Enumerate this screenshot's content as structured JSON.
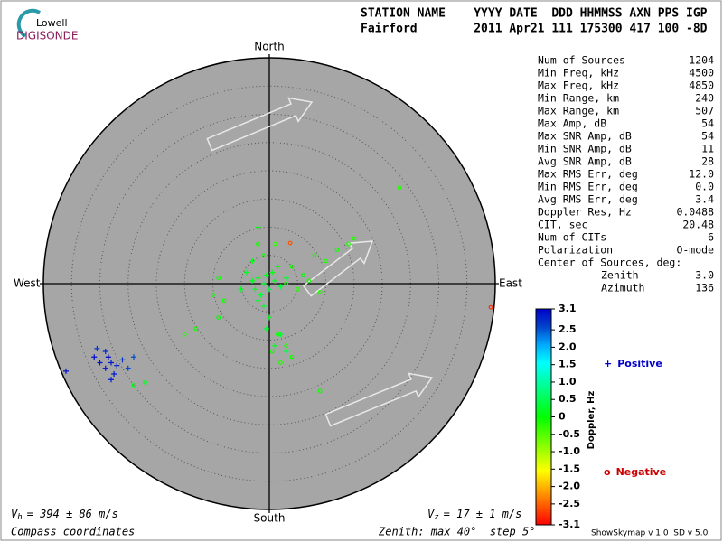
{
  "logo": {
    "top": "Lowell",
    "bottom": "DIGISONDE"
  },
  "header": {
    "line1": "STATION NAME    YYYY DATE  DDD HHMMSS AXN PPS IGP",
    "line2": "Fairford        2011 Apr21 111 175300 417 100 -8D"
  },
  "stats": {
    "rows": [
      [
        "Num of Sources",
        "1204"
      ],
      [
        "Min Freq, kHz",
        "4500"
      ],
      [
        "Max Freq, kHz",
        "4850"
      ],
      [
        "Min Range, km",
        "240"
      ],
      [
        "Max Range, km",
        "507"
      ],
      [
        "Max Amp, dB",
        "54"
      ],
      [
        "Max SNR Amp, dB",
        "54"
      ],
      [
        "Min SNR Amp, dB",
        "11"
      ],
      [
        "Avg SNR Amp, dB",
        "28"
      ],
      [
        "Max RMS Err, deg",
        "12.0"
      ],
      [
        "Min RMS Err, deg",
        "0.0"
      ],
      [
        "Avg RMS Err, deg",
        "3.4"
      ],
      [
        "Doppler Res, Hz",
        "0.0488"
      ],
      [
        "CIT, sec",
        "20.48"
      ],
      [
        "Num of CITs",
        "6"
      ],
      [
        "Polarization",
        "O-mode"
      ]
    ],
    "center_title": "Center of Sources, deg:",
    "zenith": [
      "Zenith",
      "3.0"
    ],
    "azimuth": [
      "Azimuth",
      "136"
    ]
  },
  "footer": {
    "vh": {
      "symbol": "V",
      "sub": "h",
      "text": "= 394 ± 86 m/s"
    },
    "vz": {
      "symbol": "V",
      "sub": "z",
      "text": "= 17 ± 1 m/s"
    },
    "coords": "Compass coordinates",
    "zenith": "Zenith: max 40°  step 5°",
    "version": "ShowSkymap v 1.0  SD v 5.0"
  },
  "chart_data": {
    "type": "scatter",
    "directions": {
      "north": "North",
      "south": "South",
      "east": "East",
      "west": "West"
    },
    "xlim": [
      -40,
      40
    ],
    "ylim": [
      -40,
      40
    ],
    "colorbar": {
      "label": "Doppler, Hz",
      "clim": [
        -3.1,
        3.1
      ],
      "ticks": [
        3.1,
        2.5,
        {
          "value": 2.0,
          "label": "2.0"
        },
        1.5,
        {
          "value": 1.0,
          "label": "1.0"
        },
        0.5,
        0,
        -0.5,
        {
          "value": -1.0,
          "label": "-1.0"
        },
        -1.5,
        {
          "value": -2.0,
          "label": "-2.0"
        },
        -2.5,
        -3.1
      ]
    },
    "series": [
      {
        "name": "Positive",
        "color": "#0000cc",
        "marker": "+",
        "x": [
          -1,
          -2,
          0,
          -3,
          1,
          -1.5,
          0.5,
          -2.5,
          2,
          -0.5,
          -4,
          1.5,
          -1,
          0,
          -3,
          -5,
          3,
          -2,
          2,
          1,
          3,
          -0.5,
          -2,
          -28,
          -29,
          -27,
          -28.5,
          -27.5,
          -30,
          -26,
          -29,
          -25,
          -28,
          -31,
          -36,
          -30.5,
          -24
        ],
        "values": [
          0,
          1,
          -1,
          0.5,
          0.5,
          -2,
          2,
          -1,
          -0.5,
          1.5,
          2,
          3,
          -4,
          -6,
          4,
          -1,
          1,
          -3,
          -9,
          -11,
          -12,
          -8,
          10,
          -14,
          -15,
          -14.5,
          -13,
          -16,
          -14,
          -13.5,
          -12,
          -15,
          -17,
          -13,
          -15.5,
          -11.5,
          -13
        ],
        "doppler": [
          0.3,
          0.2,
          0.4,
          0.1,
          0.2,
          0.3,
          0.1,
          0.2,
          0.3,
          0.2,
          0.2,
          0.1,
          0.3,
          0.2,
          0.1,
          0.2,
          0.3,
          0.2,
          0.3,
          0.2,
          0.4,
          0.3,
          0.1,
          2.9,
          3.0,
          2.8,
          3.1,
          2.9,
          3.0,
          2.7,
          2.8,
          2.6,
          2.9,
          3.0,
          3.0,
          2.7,
          2.5
        ]
      },
      {
        "name": "Negative",
        "color": "#cc0000",
        "marker": "o",
        "x": [
          3,
          5,
          7,
          9,
          6,
          4,
          8,
          10,
          12,
          14,
          15,
          -1,
          -2,
          1,
          3.7,
          -8,
          -9,
          -13,
          -15,
          1.5,
          3,
          4,
          2,
          0.5,
          9,
          23,
          -9,
          -10,
          39.2,
          -22,
          -24
        ],
        "values": [
          0,
          -1,
          0.5,
          -1.5,
          1.5,
          3,
          5,
          4,
          6,
          7,
          8,
          5,
          7,
          7,
          7.2,
          -3,
          -6,
          -8,
          -9,
          -9,
          -11,
          -13,
          -14,
          -12,
          -19,
          17,
          1,
          -2,
          -4.2,
          -17.5,
          -18
        ],
        "doppler": [
          -0.1,
          -0.2,
          -0.1,
          -0.2,
          0,
          -0.1,
          -0.1,
          -0.2,
          -0.1,
          -0.2,
          -0.2,
          -0.1,
          -0.1,
          -0.3,
          -2.6,
          -0.1,
          0,
          -0.1,
          -0.2,
          -0.1,
          -0.2,
          -0.1,
          -0.2,
          -0.1,
          -0.1,
          -0.2,
          -0.1,
          -0.1,
          -2.8,
          0.2,
          0.1
        ]
      }
    ]
  }
}
